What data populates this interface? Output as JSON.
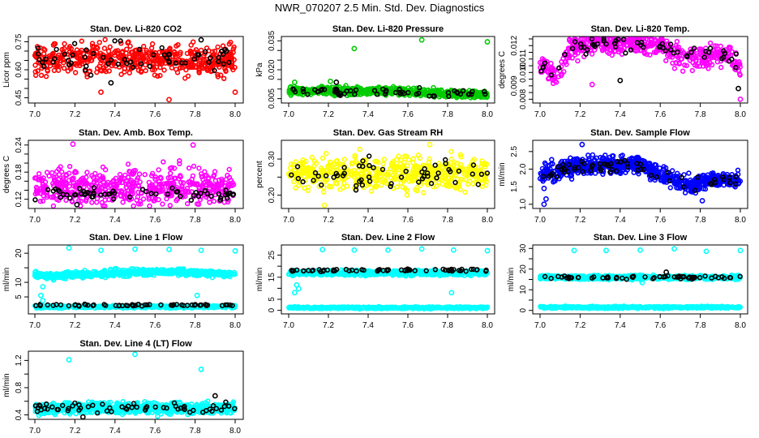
{
  "title": "NWR_070207  2.5 Min. Std. Dev. Diagnostics",
  "chart_data": [
    {
      "type": "scatter",
      "title": "Stan. Dev. Li-820 CO2",
      "ylabel": "Licor ppm",
      "xlim": [
        7.0,
        8.0
      ],
      "ylim": [
        0.435,
        0.765
      ],
      "xticks": [
        "7.0",
        "7.2",
        "7.4",
        "7.6",
        "7.8",
        "8.0"
      ],
      "yticks": [
        0.45,
        0.5,
        0.55,
        0.6,
        0.65,
        0.7,
        0.75
      ],
      "ytick_labels": {
        "0.45": "0.45",
        "0.6": "0.60",
        "0.75": "0.75"
      },
      "series": [
        {
          "name": "all",
          "color": "#ff0000",
          "n": 520,
          "trend": [
            [
              7.0,
              0.655
            ],
            [
              8.0,
              0.655
            ]
          ],
          "spread": 0.05
        },
        {
          "name": "selected",
          "color": "#000000",
          "n": 60,
          "trend": [
            [
              7.0,
              0.655
            ],
            [
              8.0,
              0.655
            ]
          ],
          "spread": 0.05
        }
      ],
      "outliers": [
        {
          "x": 7.33,
          "y": 0.48,
          "color": "#ff0000"
        },
        {
          "x": 7.67,
          "y": 0.44,
          "color": "#ff0000"
        },
        {
          "x": 8.0,
          "y": 0.48,
          "color": "#ff0000"
        },
        {
          "x": 7.38,
          "y": 0.53,
          "color": "#000000"
        },
        {
          "x": 7.83,
          "y": 0.76,
          "color": "#000000"
        }
      ]
    },
    {
      "type": "scatter",
      "title": "Stan. Dev. Li-820 Pressure",
      "ylabel": "kPa",
      "xlim": [
        7.0,
        8.0
      ],
      "ylim": [
        0.004,
        0.036
      ],
      "xticks": [
        "7.0",
        "7.2",
        "7.4",
        "7.6",
        "7.8",
        "8.0"
      ],
      "yticks": [
        0.005,
        0.01,
        0.015,
        0.02,
        0.025,
        0.03,
        0.035
      ],
      "ytick_labels": {
        "0.005": "0.005",
        "0.02": "0.020",
        "0.035": "0.035"
      },
      "series": [
        {
          "name": "all",
          "color": "#00cc00",
          "n": 700,
          "trend": [
            [
              7.0,
              0.009
            ],
            [
              7.5,
              0.009
            ],
            [
              8.0,
              0.007
            ]
          ],
          "spread": 0.0012
        },
        {
          "name": "selected",
          "color": "#000000",
          "n": 60,
          "trend": [
            [
              7.0,
              0.009
            ],
            [
              7.5,
              0.009
            ],
            [
              8.0,
              0.007
            ]
          ],
          "spread": 0.0012
        }
      ],
      "outliers": [
        {
          "x": 7.33,
          "y": 0.031,
          "color": "#00cc00"
        },
        {
          "x": 7.67,
          "y": 0.0355,
          "color": "#00cc00"
        },
        {
          "x": 8.0,
          "y": 0.0345,
          "color": "#00cc00"
        },
        {
          "x": 7.03,
          "y": 0.0135,
          "color": "#00cc00"
        },
        {
          "x": 7.21,
          "y": 0.014,
          "color": "#00cc00"
        },
        {
          "x": 7.24,
          "y": 0.0135,
          "color": "#000000"
        }
      ]
    },
    {
      "type": "scatter",
      "title": "Stan. Dev. Li-820 Temp.",
      "ylabel": "degrees C",
      "xlim": [
        7.0,
        8.0
      ],
      "ylim": [
        0.0079,
        0.0125
      ],
      "xticks": [
        "7.0",
        "7.2",
        "7.4",
        "7.6",
        "7.8",
        "8.0"
      ],
      "yticks": [
        0.008,
        0.0085,
        0.009,
        0.0095,
        0.01,
        0.0105,
        0.011,
        0.0115,
        0.012,
        0.0125
      ],
      "ytick_labels": {
        "0.008": "0.008",
        "0.009": "0.009",
        "0.01": "0.010",
        "0.011": "0.011",
        "0.012": "0.012"
      },
      "series": [
        {
          "name": "all",
          "color": "#ff00ff",
          "n": 520,
          "trend": [
            [
              7.0,
              0.0108
            ],
            [
              7.08,
              0.0095
            ],
            [
              7.15,
              0.0118
            ],
            [
              7.3,
              0.0122
            ],
            [
              7.6,
              0.0121
            ],
            [
              7.7,
              0.011
            ],
            [
              7.85,
              0.0112
            ],
            [
              7.95,
              0.0115
            ],
            [
              8.0,
              0.0102
            ]
          ],
          "spread": 0.0005
        },
        {
          "name": "selected",
          "color": "#000000",
          "n": 60,
          "trend": [
            [
              7.0,
              0.0108
            ],
            [
              7.08,
              0.0098
            ],
            [
              7.15,
              0.0118
            ],
            [
              7.3,
              0.0122
            ],
            [
              7.6,
              0.0121
            ],
            [
              7.7,
              0.0113
            ],
            [
              7.85,
              0.0115
            ],
            [
              8.0,
              0.0105
            ]
          ],
          "spread": 0.0004
        }
      ],
      "outliers": [
        {
          "x": 8.0,
          "y": 0.008,
          "color": "#ff00ff"
        },
        {
          "x": 7.26,
          "y": 0.0091,
          "color": "#ff00ff"
        },
        {
          "x": 7.4,
          "y": 0.0094,
          "color": "#000000"
        },
        {
          "x": 7.99,
          "y": 0.0088,
          "color": "#000000"
        }
      ]
    },
    {
      "type": "scatter",
      "title": "Stan. Dev. Amb. Box Temp.",
      "ylabel": "degrees C",
      "xlim": [
        7.0,
        8.0
      ],
      "ylim": [
        0.105,
        0.245
      ],
      "xticks": [
        "7.0",
        "7.2",
        "7.4",
        "7.6",
        "7.8",
        "8.0"
      ],
      "yticks": [
        0.12,
        0.14,
        0.16,
        0.18,
        0.2,
        0.22,
        0.24
      ],
      "ytick_labels": {
        "0.12": "0.12",
        "0.18": "0.18",
        "0.24": "0.24"
      },
      "series": [
        {
          "name": "all",
          "color": "#ff00ff",
          "n": 520,
          "trend": [
            [
              7.0,
              0.148
            ],
            [
              8.0,
              0.148
            ]
          ],
          "spread": 0.025
        },
        {
          "name": "selected",
          "color": "#000000",
          "n": 60,
          "trend": [
            [
              7.0,
              0.132
            ],
            [
              8.0,
              0.132
            ]
          ],
          "spread": 0.008
        }
      ],
      "outliers": [
        {
          "x": 7.19,
          "y": 0.242,
          "color": "#ff00ff"
        },
        {
          "x": 7.79,
          "y": 0.24,
          "color": "#ff00ff"
        },
        {
          "x": 7.21,
          "y": 0.108,
          "color": "#000000"
        }
      ]
    },
    {
      "type": "scatter",
      "title": "Stan. Dev. Gas Stream RH",
      "ylabel": "percent",
      "xlim": [
        7.0,
        8.0
      ],
      "ylim": [
        0.17,
        0.345
      ],
      "xticks": [
        "7.0",
        "7.2",
        "7.4",
        "7.6",
        "7.8",
        "8.0"
      ],
      "yticks": [
        0.2,
        0.25,
        0.3
      ],
      "ytick_labels": {
        "0.2": "0.20",
        "0.3": "0.30"
      },
      "series": [
        {
          "name": "all",
          "color": "#ffff00",
          "n": 520,
          "trend": [
            [
              7.0,
              0.26
            ],
            [
              8.0,
              0.26
            ]
          ],
          "spread": 0.028
        },
        {
          "name": "selected",
          "color": "#000000",
          "n": 55,
          "trend": [
            [
              7.0,
              0.26
            ],
            [
              8.0,
              0.26
            ]
          ],
          "spread": 0.025
        }
      ],
      "outliers": [
        {
          "x": 7.18,
          "y": 0.172,
          "color": "#ffff00"
        },
        {
          "x": 7.71,
          "y": 0.34,
          "color": "#ffff00"
        }
      ]
    },
    {
      "type": "scatter",
      "title": "Stan. Dev. Sample Flow",
      "ylabel": "ml/min",
      "xlim": [
        7.0,
        8.0
      ],
      "ylim": [
        0.95,
        2.75
      ],
      "xticks": [
        "7.0",
        "7.2",
        "7.4",
        "7.6",
        "7.8",
        "8.0"
      ],
      "yticks": [
        1.0,
        1.5,
        2.0,
        2.5
      ],
      "ytick_labels": {
        "1": "1.0",
        "1.5": "1.5",
        "2": "2.0",
        "2.5": "2.5"
      },
      "series": [
        {
          "name": "all",
          "color": "#0000ff",
          "n": 700,
          "trend": [
            [
              7.0,
              1.85
            ],
            [
              7.2,
              2.1
            ],
            [
              7.5,
              2.15
            ],
            [
              7.6,
              1.85
            ],
            [
              7.75,
              1.5
            ],
            [
              7.85,
              1.7
            ],
            [
              8.0,
              1.7
            ]
          ],
          "spread": 0.15
        },
        {
          "name": "selected",
          "color": "#000000",
          "n": 60,
          "trend": [
            [
              7.0,
              1.8
            ],
            [
              7.2,
              2.05
            ],
            [
              7.5,
              2.15
            ],
            [
              7.6,
              1.85
            ],
            [
              7.75,
              1.5
            ],
            [
              7.85,
              1.7
            ],
            [
              8.0,
              1.65
            ]
          ],
          "spread": 0.12
        }
      ],
      "outliers": [
        {
          "x": 7.02,
          "y": 1.0,
          "color": "#0000ff"
        },
        {
          "x": 7.03,
          "y": 1.15,
          "color": "#0000ff"
        },
        {
          "x": 7.02,
          "y": 1.45,
          "color": "#0000ff"
        },
        {
          "x": 7.21,
          "y": 2.7,
          "color": "#0000ff"
        },
        {
          "x": 7.81,
          "y": 1.1,
          "color": "#0000ff"
        }
      ]
    },
    {
      "type": "scatter",
      "title": "Stan. Dev. Line 1 Flow",
      "ylabel": "ml/min",
      "xlim": [
        7.0,
        8.0
      ],
      "ylim": [
        0,
        22
      ],
      "xticks": [
        "7.0",
        "7.2",
        "7.4",
        "7.6",
        "7.8",
        "8.0"
      ],
      "yticks": [
        5,
        10,
        15,
        20
      ],
      "ytick_labels": {
        "5": "5",
        "10": "10",
        "20": "20"
      },
      "series": [
        {
          "name": "upper",
          "color": "#00ffff",
          "n": 600,
          "trend": [
            [
              7.0,
              13
            ],
            [
              7.05,
              12
            ],
            [
              7.4,
              13.2
            ],
            [
              7.7,
              13.8
            ],
            [
              8.0,
              12.5
            ]
          ],
          "spread": 0.7
        },
        {
          "name": "lower",
          "color": "#00ffff",
          "n": 500,
          "trend": [
            [
              7.0,
              1.6
            ],
            [
              8.0,
              1.6
            ]
          ],
          "spread": 0.25
        },
        {
          "name": "selected",
          "color": "#000000",
          "n": 60,
          "trend": [
            [
              7.0,
              2.2
            ],
            [
              8.0,
              2.2
            ]
          ],
          "spread": 0.2
        }
      ],
      "outliers": [
        {
          "x": 7.17,
          "y": 21.8,
          "color": "#00ffff"
        },
        {
          "x": 7.33,
          "y": 21,
          "color": "#00ffff"
        },
        {
          "x": 7.5,
          "y": 21.4,
          "color": "#00ffff"
        },
        {
          "x": 7.67,
          "y": 21.3,
          "color": "#00ffff"
        },
        {
          "x": 7.83,
          "y": 21,
          "color": "#00ffff"
        },
        {
          "x": 8.0,
          "y": 20.8,
          "color": "#00ffff"
        },
        {
          "x": 7.03,
          "y": 5.5,
          "color": "#00ffff"
        },
        {
          "x": 7.04,
          "y": 3.7,
          "color": "#00ffff"
        },
        {
          "x": 7.04,
          "y": 8.5,
          "color": "#00ffff"
        },
        {
          "x": 7.81,
          "y": 5.5,
          "color": "#00ffff"
        }
      ]
    },
    {
      "type": "scatter",
      "title": "Stan. Dev. Line 2 Flow",
      "ylabel": "ml/min",
      "xlim": [
        7.0,
        8.0
      ],
      "ylim": [
        -0.5,
        28.5
      ],
      "xticks": [
        "7.0",
        "7.2",
        "7.4",
        "7.6",
        "7.8",
        "8.0"
      ],
      "yticks": [
        0,
        5,
        10,
        15,
        20,
        25
      ],
      "ytick_labels": {
        "0": "0",
        "5": "5",
        "15": "15",
        "25": "25"
      },
      "series": [
        {
          "name": "upper",
          "color": "#00ffff",
          "n": 600,
          "trend": [
            [
              7.0,
              17
            ],
            [
              8.0,
              17
            ]
          ],
          "spread": 0.7
        },
        {
          "name": "lower",
          "color": "#00ffff",
          "n": 500,
          "trend": [
            [
              7.0,
              1.2
            ],
            [
              8.0,
              1.2
            ]
          ],
          "spread": 0.25
        },
        {
          "name": "selected",
          "color": "#000000",
          "n": 60,
          "trend": [
            [
              7.0,
              18
            ],
            [
              8.0,
              18.3
            ]
          ],
          "spread": 0.4
        }
      ],
      "outliers": [
        {
          "x": 7.17,
          "y": 27.5,
          "color": "#00ffff"
        },
        {
          "x": 7.33,
          "y": 27.3,
          "color": "#00ffff"
        },
        {
          "x": 7.5,
          "y": 27.3,
          "color": "#00ffff"
        },
        {
          "x": 7.67,
          "y": 27.8,
          "color": "#00ffff"
        },
        {
          "x": 7.83,
          "y": 27.3,
          "color": "#00ffff"
        },
        {
          "x": 8.0,
          "y": 27,
          "color": "#00ffff"
        },
        {
          "x": 7.03,
          "y": 8,
          "color": "#00ffff"
        },
        {
          "x": 7.04,
          "y": 11.5,
          "color": "#00ffff"
        },
        {
          "x": 7.05,
          "y": 9.8,
          "color": "#00ffff"
        },
        {
          "x": 7.82,
          "y": 8,
          "color": "#00ffff"
        }
      ]
    },
    {
      "type": "scatter",
      "title": "Stan. Dev. Line 3 Flow",
      "ylabel": "ml/min",
      "xlim": [
        7.0,
        8.0
      ],
      "ylim": [
        -0.5,
        30.5
      ],
      "xticks": [
        "7.0",
        "7.2",
        "7.4",
        "7.6",
        "7.8",
        "8.0"
      ],
      "yticks": [
        0,
        5,
        10,
        15,
        20,
        25,
        30
      ],
      "ytick_labels": {
        "0": "0",
        "10": "10",
        "20": "20",
        "30": "30"
      },
      "series": [
        {
          "name": "upper",
          "color": "#00ffff",
          "n": 600,
          "trend": [
            [
              7.0,
              16
            ],
            [
              8.0,
              16
            ]
          ],
          "spread": 0.6
        },
        {
          "name": "lower",
          "color": "#00ffff",
          "n": 500,
          "trend": [
            [
              7.0,
              1.5
            ],
            [
              8.0,
              1.5
            ]
          ],
          "spread": 0.3
        },
        {
          "name": "selected",
          "color": "#000000",
          "n": 60,
          "trend": [
            [
              7.0,
              16
            ],
            [
              8.0,
              16
            ]
          ],
          "spread": 0.5
        }
      ],
      "outliers": [
        {
          "x": 7.17,
          "y": 29,
          "color": "#00ffff"
        },
        {
          "x": 7.33,
          "y": 29,
          "color": "#00ffff"
        },
        {
          "x": 7.5,
          "y": 29.2,
          "color": "#00ffff"
        },
        {
          "x": 7.67,
          "y": 29.8,
          "color": "#00ffff"
        },
        {
          "x": 7.83,
          "y": 28.6,
          "color": "#00ffff"
        },
        {
          "x": 8.0,
          "y": 29,
          "color": "#00ffff"
        },
        {
          "x": 7.51,
          "y": 13.5,
          "color": "#00ffff"
        },
        {
          "x": 7.63,
          "y": 18.5,
          "color": "#000000"
        }
      ]
    },
    {
      "type": "scatter",
      "title": "Stan. Dev. Line 4 (LT) Flow",
      "ylabel": "ml/min",
      "xlim": [
        7.0,
        8.0
      ],
      "ylim": [
        0.37,
        1.3
      ],
      "xticks": [
        "7.0",
        "7.2",
        "7.4",
        "7.6",
        "7.8",
        "8.0"
      ],
      "yticks": [
        0.4,
        0.6,
        0.8,
        1.0,
        1.2
      ],
      "ytick_labels": {
        "0.4": "0.4",
        "0.8": "0.8",
        "1.2": "1.2"
      },
      "series": [
        {
          "name": "all",
          "color": "#00ffff",
          "n": 700,
          "trend": [
            [
              7.0,
              0.5
            ],
            [
              8.0,
              0.5
            ]
          ],
          "spread": 0.05
        },
        {
          "name": "selected",
          "color": "#000000",
          "n": 60,
          "trend": [
            [
              7.0,
              0.5
            ],
            [
              8.0,
              0.5
            ]
          ],
          "spread": 0.05
        }
      ],
      "outliers": [
        {
          "x": 7.17,
          "y": 1.21,
          "color": "#00ffff"
        },
        {
          "x": 7.5,
          "y": 1.29,
          "color": "#00ffff"
        },
        {
          "x": 7.83,
          "y": 1.07,
          "color": "#00ffff"
        },
        {
          "x": 7.9,
          "y": 0.68,
          "color": "#000000"
        },
        {
          "x": 7.24,
          "y": 0.37,
          "color": "#000000"
        }
      ]
    }
  ]
}
